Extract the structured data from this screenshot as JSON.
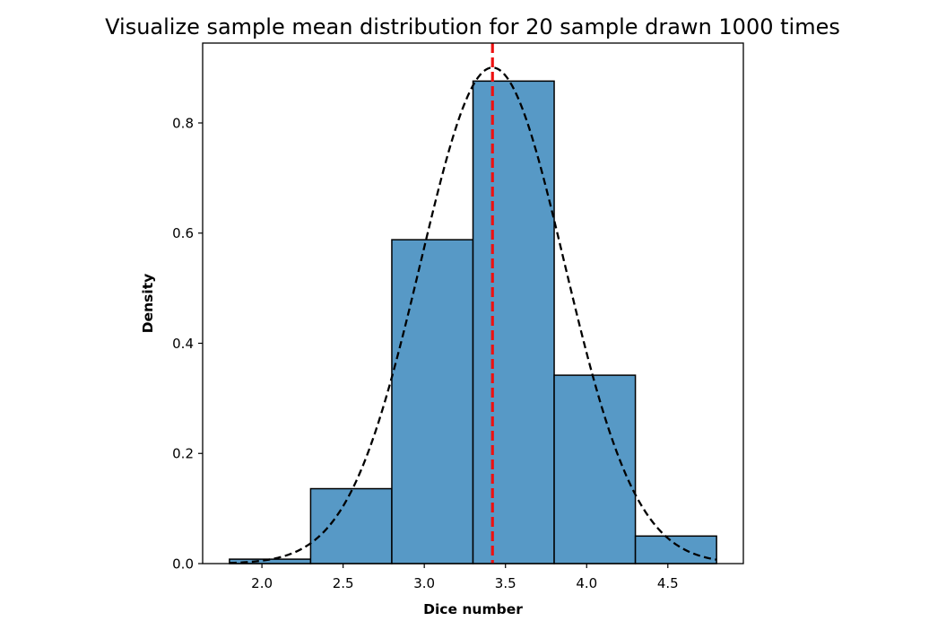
{
  "chart_data": {
    "type": "bar",
    "title": "Visualize sample mean distribution for 20 sample drawn 1000 times",
    "xlabel": "Dice number",
    "ylabel": "Density",
    "xlim": [
      1.635,
      4.965
    ],
    "ylim": [
      0,
      0.945
    ],
    "xticks": [
      2.0,
      2.5,
      3.0,
      3.5,
      4.0,
      4.5
    ],
    "yticks": [
      0.0,
      0.2,
      0.4,
      0.6,
      0.8
    ],
    "bins": [
      {
        "x0": 1.8,
        "x1": 2.3,
        "value": 0.008
      },
      {
        "x0": 2.3,
        "x1": 2.8,
        "value": 0.136
      },
      {
        "x0": 2.8,
        "x1": 3.3,
        "value": 0.588
      },
      {
        "x0": 3.3,
        "x1": 3.8,
        "value": 0.876
      },
      {
        "x0": 3.8,
        "x1": 4.3,
        "value": 0.342
      },
      {
        "x0": 4.3,
        "x1": 4.8,
        "value": 0.05
      }
    ],
    "normal_curve": {
      "mean": 3.42,
      "std": 0.443,
      "x_range": [
        1.8,
        4.8
      ],
      "style": "dashed",
      "color": "#000000"
    },
    "mean_line": {
      "x": 3.42,
      "style": "dashed",
      "color": "#ee1111"
    },
    "bar_color": "#5799c6",
    "bar_edge_color": "#000000",
    "grid": false,
    "legend": "none"
  }
}
